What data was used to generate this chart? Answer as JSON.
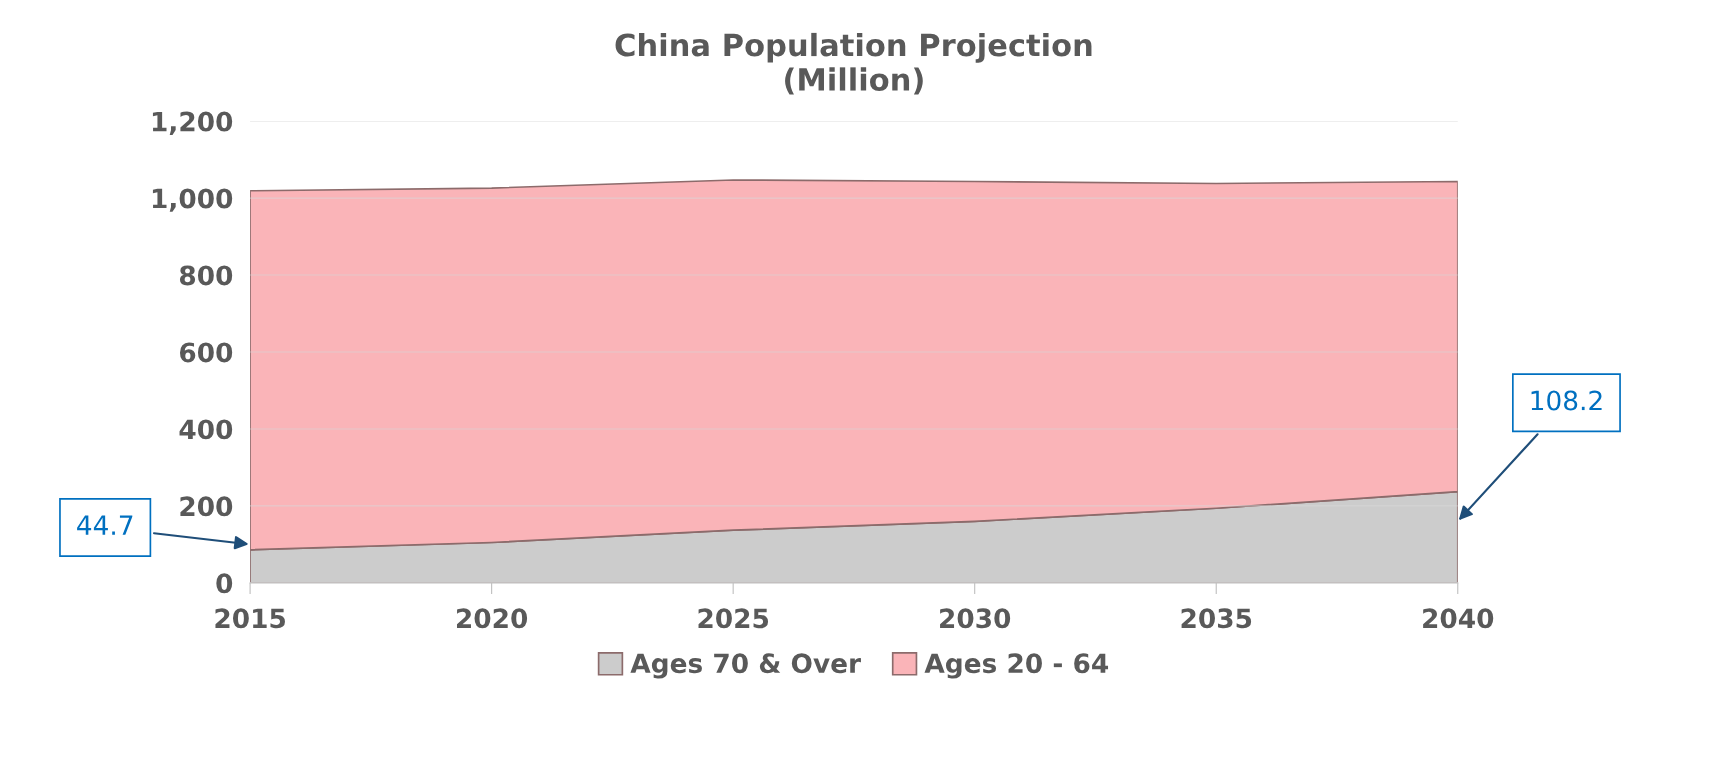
{
  "chart_data": {
    "type": "area",
    "stacked": true,
    "title": "China Population Projection\n(Million)",
    "x": [
      2015,
      2020,
      2025,
      2030,
      2035,
      2040
    ],
    "series": [
      {
        "name": "Ages 70 & Over",
        "color": "#cccccc",
        "values": [
          86,
          105,
          137,
          160,
          194,
          237
        ]
      },
      {
        "name": "Ages 20 - 64",
        "color": "#fab4b8",
        "values": [
          933,
          921,
          910,
          883,
          844,
          806
        ]
      }
    ],
    "xlim": [
      2015,
      2040
    ],
    "xticks": [
      2015,
      2020,
      2025,
      2030,
      2035,
      2040
    ],
    "ylim": [
      0,
      1200
    ],
    "yticks": [
      0,
      {
        "value": 200,
        "label": "200"
      },
      {
        "value": 400,
        "label": "400"
      },
      {
        "value": 600,
        "label": "600"
      },
      {
        "value": 800,
        "label": "800"
      },
      {
        "value": 1000,
        "label": "1,000"
      },
      {
        "value": 1200,
        "label": "1,200"
      }
    ],
    "grid": "y",
    "legend": "bottom",
    "annotations": [
      {
        "text": "44.7",
        "x": 2015,
        "y": 100
      },
      {
        "text": "108.2",
        "x": 2040,
        "y": 160
      }
    ]
  }
}
